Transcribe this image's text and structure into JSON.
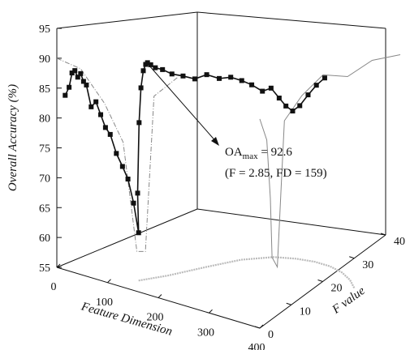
{
  "chart_data": {
    "type": "line",
    "projection": "3d",
    "ylabel": "Overall Accuracy (%)",
    "xlabel": "Feature Dimension",
    "zlabel": "F value",
    "ylim": [
      55,
      95
    ],
    "xlim": [
      0,
      400
    ],
    "zlim": [
      0,
      40
    ],
    "y_ticks": [
      "95",
      "90",
      "85",
      "80",
      "75",
      "70",
      "65",
      "60",
      "55"
    ],
    "x_ticks": [
      "0",
      "100",
      "200",
      "300",
      "400"
    ],
    "z_ticks": [
      "0",
      "10",
      "20",
      "30",
      "40"
    ],
    "grid": false,
    "legend": "none",
    "annotation": {
      "sub": "max",
      "main_prefix": "OA",
      "value_text": " = 92.6",
      "detail_text": "(F = 2.85, FD = 159)",
      "point": {
        "feature_dimension": 159,
        "f_value": 2.85,
        "overall_accuracy": 92.6
      }
    },
    "series": [
      {
        "style": "solid-square-markers",
        "points": [
          [
            13,
            0.5,
            84
          ],
          [
            20,
            0.6,
            85.5
          ],
          [
            25,
            0.7,
            88
          ],
          [
            30,
            0.8,
            88.5
          ],
          [
            35,
            0.9,
            87.5
          ],
          [
            40,
            1.0,
            88.2
          ],
          [
            45,
            1.1,
            87
          ],
          [
            50,
            1.2,
            86.5
          ],
          [
            58,
            1.4,
            83
          ],
          [
            66,
            1.6,
            84
          ],
          [
            74,
            1.8,
            82
          ],
          [
            82,
            2.0,
            80
          ],
          [
            90,
            2.2,
            79
          ],
          [
            100,
            2.5,
            76
          ],
          [
            110,
            2.8,
            74
          ],
          [
            118,
            3.2,
            72
          ],
          [
            125,
            3.8,
            68
          ],
          [
            130,
            4.5,
            63
          ],
          [
            135,
            3.5,
            70
          ],
          [
            140,
            3.2,
            82
          ],
          [
            145,
            3.0,
            88
          ],
          [
            150,
            2.95,
            91
          ],
          [
            155,
            2.9,
            92.2
          ],
          [
            159,
            2.85,
            92.6
          ],
          [
            165,
            2.9,
            92.4
          ],
          [
            172,
            3.2,
            92
          ],
          [
            182,
            3.8,
            91.8
          ],
          [
            195,
            4.6,
            91.2
          ],
          [
            210,
            5.6,
            91
          ],
          [
            225,
            6.8,
            90.6
          ],
          [
            240,
            8.0,
            91.4
          ],
          [
            255,
            9.4,
            90.8
          ],
          [
            268,
            10.8,
            91
          ],
          [
            280,
            12.2,
            90.4
          ],
          [
            290,
            13.6,
            89.6
          ],
          [
            300,
            15.2,
            88.4
          ],
          [
            308,
            16.5,
            88.8
          ],
          [
            315,
            17.8,
            87
          ],
          [
            320,
            19,
            85.5
          ],
          [
            325,
            20.2,
            84.5
          ],
          [
            330,
            21.5,
            85.2
          ],
          [
            336,
            23,
            86.8
          ],
          [
            342,
            24.5,
            88.2
          ],
          [
            348,
            26,
            89.2
          ]
        ]
      },
      {
        "style": "gray-dashdot",
        "points": [
          [
            0,
            0,
            90
          ],
          [
            40,
            1,
            89
          ],
          [
            80,
            2,
            84
          ],
          [
            110,
            3,
            78
          ],
          [
            130,
            4,
            60
          ],
          [
            140,
            5,
            60
          ],
          [
            150,
            6,
            86
          ],
          [
            175,
            9,
            89
          ]
        ]
      },
      {
        "style": "gray-back-wall",
        "points": [
          [
            400,
            0,
            90
          ],
          [
            400,
            2,
            86
          ],
          [
            400,
            3,
            76
          ],
          [
            400,
            3.5,
            66
          ],
          [
            400,
            5,
            64
          ],
          [
            400,
            6,
            76
          ],
          [
            400,
            7,
            88
          ],
          [
            400,
            12,
            91
          ],
          [
            400,
            18,
            93
          ],
          [
            400,
            25,
            91
          ],
          [
            400,
            32,
            92
          ],
          [
            400,
            40,
            91
          ]
        ]
      },
      {
        "style": "light-gray-floor",
        "points": [
          [
            130,
            4.5,
            55
          ],
          [
            150,
            10,
            55
          ],
          [
            170,
            18,
            55
          ],
          [
            190,
            25,
            55
          ],
          [
            220,
            30,
            55
          ],
          [
            250,
            32,
            55
          ],
          [
            280,
            33,
            55
          ],
          [
            310,
            33,
            55
          ],
          [
            340,
            32,
            55
          ],
          [
            370,
            30,
            55
          ],
          [
            400,
            27,
            55
          ]
        ]
      }
    ]
  }
}
